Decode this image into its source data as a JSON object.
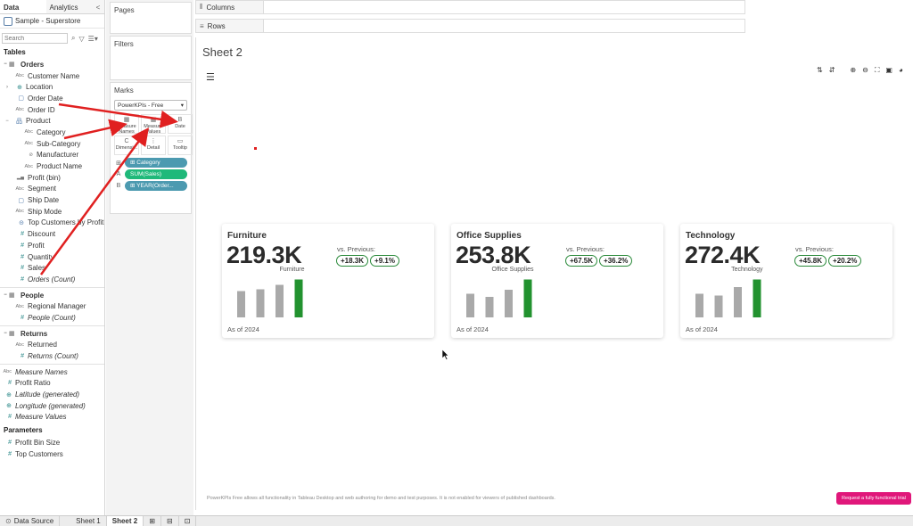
{
  "left_pane": {
    "tab_data": "Data",
    "tab_analytics": "Analytics",
    "collapse": "<",
    "datasource": "Sample - Superstore",
    "search_placeholder": "Search",
    "tables_label": "Tables",
    "orders": {
      "label": "Orders",
      "fields": [
        {
          "type": "Abc",
          "label": "Customer Name"
        },
        {
          "type": "geo",
          "label": "Location"
        },
        {
          "type": "date",
          "label": "Order Date"
        },
        {
          "type": "Abc",
          "label": "Order ID"
        },
        {
          "type": "hier",
          "label": "Product"
        }
      ],
      "product_fields": [
        {
          "type": "Abc",
          "label": "Category"
        },
        {
          "type": "Abc",
          "label": "Sub-Category"
        },
        {
          "type": "clip",
          "label": "Manufacturer"
        },
        {
          "type": "Abc",
          "label": "Product Name"
        }
      ],
      "after_fields": [
        {
          "type": "bin",
          "label": "Profit (bin)"
        },
        {
          "type": "Abc",
          "label": "Segment"
        },
        {
          "type": "date",
          "label": "Ship Date"
        },
        {
          "type": "Abc",
          "label": "Ship Mode"
        },
        {
          "type": "set",
          "label": "Top Customers by Profit"
        },
        {
          "type": "#",
          "label": "Discount"
        },
        {
          "type": "#",
          "label": "Profit"
        },
        {
          "type": "#",
          "label": "Quantity"
        },
        {
          "type": "#",
          "label": "Sales"
        },
        {
          "type": "#",
          "label": "Orders (Count)"
        }
      ]
    },
    "people": {
      "label": "People",
      "fields": [
        {
          "type": "Abc",
          "label": "Regional Manager"
        },
        {
          "type": "#",
          "label": "People (Count)"
        }
      ]
    },
    "returns": {
      "label": "Returns",
      "fields": [
        {
          "type": "Abc",
          "label": "Returned"
        },
        {
          "type": "#",
          "label": "Returns (Count)"
        }
      ]
    },
    "extra_fields": [
      {
        "type": "Abc",
        "label": "Measure Names"
      },
      {
        "type": "#",
        "label": "Profit Ratio"
      },
      {
        "type": "geo",
        "label": "Latitude (generated)"
      },
      {
        "type": "geo",
        "label": "Longitude (generated)"
      },
      {
        "type": "#",
        "label": "Measure Values"
      }
    ],
    "parameters_label": "Parameters",
    "parameters": [
      {
        "type": "#",
        "label": "Profit Bin Size"
      },
      {
        "type": "#",
        "label": "Top Customers"
      }
    ]
  },
  "mid": {
    "pages": "Pages",
    "filters": "Filters",
    "marks": "Marks",
    "marks_type": "PowerKPIs - Free",
    "buttons": [
      {
        "icon": "▦",
        "label": "Measure Names"
      },
      {
        "icon": "▦",
        "label": "Measure Values"
      },
      {
        "icon": "B",
        "label": "Date"
      },
      {
        "icon": "C",
        "label": "Dimensi..."
      },
      {
        "icon": "⋮",
        "label": "Detail"
      },
      {
        "icon": "▭",
        "label": "Tooltip"
      }
    ],
    "pills": [
      {
        "icon": "⊞",
        "label": "⊞ Category",
        "color": "blue"
      },
      {
        "icon": "A",
        "label": "SUM(Sales)",
        "color": "green"
      },
      {
        "icon": "B",
        "label": "⊞ YEAR(Order...",
        "color": "blue"
      }
    ]
  },
  "shelves": {
    "columns": "Columns",
    "rows": "Rows"
  },
  "sheet": {
    "title": "Sheet 2",
    "disclaimer": "PowerKPIs Free allows all functionality in Tableau Desktop and web authoring for demo and test purposes. It is not enabled for viewers of published dashboards.",
    "cta": "Request a fully functional trial"
  },
  "kpis": [
    {
      "name": "Furniture",
      "value": "219.3K",
      "prev_label": "vs. Previous:",
      "delta_abs": "+18.3K",
      "delta_pct": "+9.1%",
      "chart_label": "Furniture",
      "foot": "As of 2024",
      "bars": [
        0.59,
        0.63,
        0.73,
        0.85
      ]
    },
    {
      "name": "Office Supplies",
      "value": "253.8K",
      "prev_label": "vs. Previous:",
      "delta_abs": "+67.5K",
      "delta_pct": "+36.2%",
      "chart_label": "Office Supplies",
      "foot": "As of 2024",
      "bars": [
        0.53,
        0.46,
        0.62,
        0.85
      ]
    },
    {
      "name": "Technology",
      "value": "272.4K",
      "prev_label": "vs. Previous:",
      "delta_abs": "+45.8K",
      "delta_pct": "+20.2%",
      "chart_label": "Technology",
      "foot": "As of 2024",
      "bars": [
        0.53,
        0.49,
        0.68,
        0.85
      ]
    }
  ],
  "colors": {
    "bar_gray": "#a9a9a9",
    "bar_green": "#22922f",
    "arrow": "#e02020"
  },
  "tabs": {
    "datasource": "Data Source",
    "sheet1": "Sheet 1",
    "sheet2": "Sheet 2"
  }
}
